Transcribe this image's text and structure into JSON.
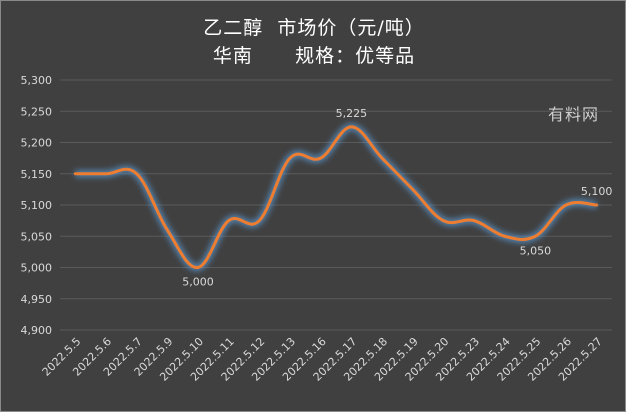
{
  "header": {
    "title_line1": "乙二醇  市场价（元/吨）",
    "title_line2": "华南      规格：优等品"
  },
  "watermark": "有料网",
  "colors": {
    "background": "#404040",
    "line": "#ED7D31",
    "glow": "#5B9BD5",
    "text": "#D9D9D9",
    "grid": "#5A5A5A"
  },
  "chart_data": {
    "type": "line",
    "title": "乙二醇  市场价（元/吨）",
    "subtitle": "华南      规格：优等品",
    "xlabel": "",
    "ylabel": "",
    "ylim": [
      4900,
      5300
    ],
    "yticks": [
      4900,
      4950,
      5000,
      5050,
      5100,
      5150,
      5200,
      5250,
      5300
    ],
    "ytick_labels": [
      "4,900",
      "4,950",
      "5,000",
      "5,050",
      "5,100",
      "5,150",
      "5,200",
      "5,250",
      "5,300"
    ],
    "grid": true,
    "smooth": true,
    "categories": [
      "2022.5.5",
      "2022.5.6",
      "2022.5.7",
      "2022.5.9",
      "2022.5.10",
      "2022.5.11",
      "2022.5.12",
      "2022.5.13",
      "2022.5.16",
      "2022.5.17",
      "2022.5.18",
      "2022.5.19",
      "2022.5.20",
      "2022.5.23",
      "2022.5.24",
      "2022.5.25",
      "2022.5.26",
      "2022.5.27"
    ],
    "series": [
      {
        "values": [
          5150,
          5150,
          5150,
          5060,
          5000,
          5075,
          5075,
          5175,
          5175,
          5225,
          5175,
          5125,
          5075,
          5075,
          5050,
          5050,
          5100,
          5100
        ]
      }
    ],
    "data_labels": [
      {
        "index": 4,
        "text": "5,000"
      },
      {
        "index": 9,
        "text": "5,225"
      },
      {
        "index": 15,
        "text": "5,050"
      },
      {
        "index": 17,
        "text": "5,100"
      }
    ]
  }
}
